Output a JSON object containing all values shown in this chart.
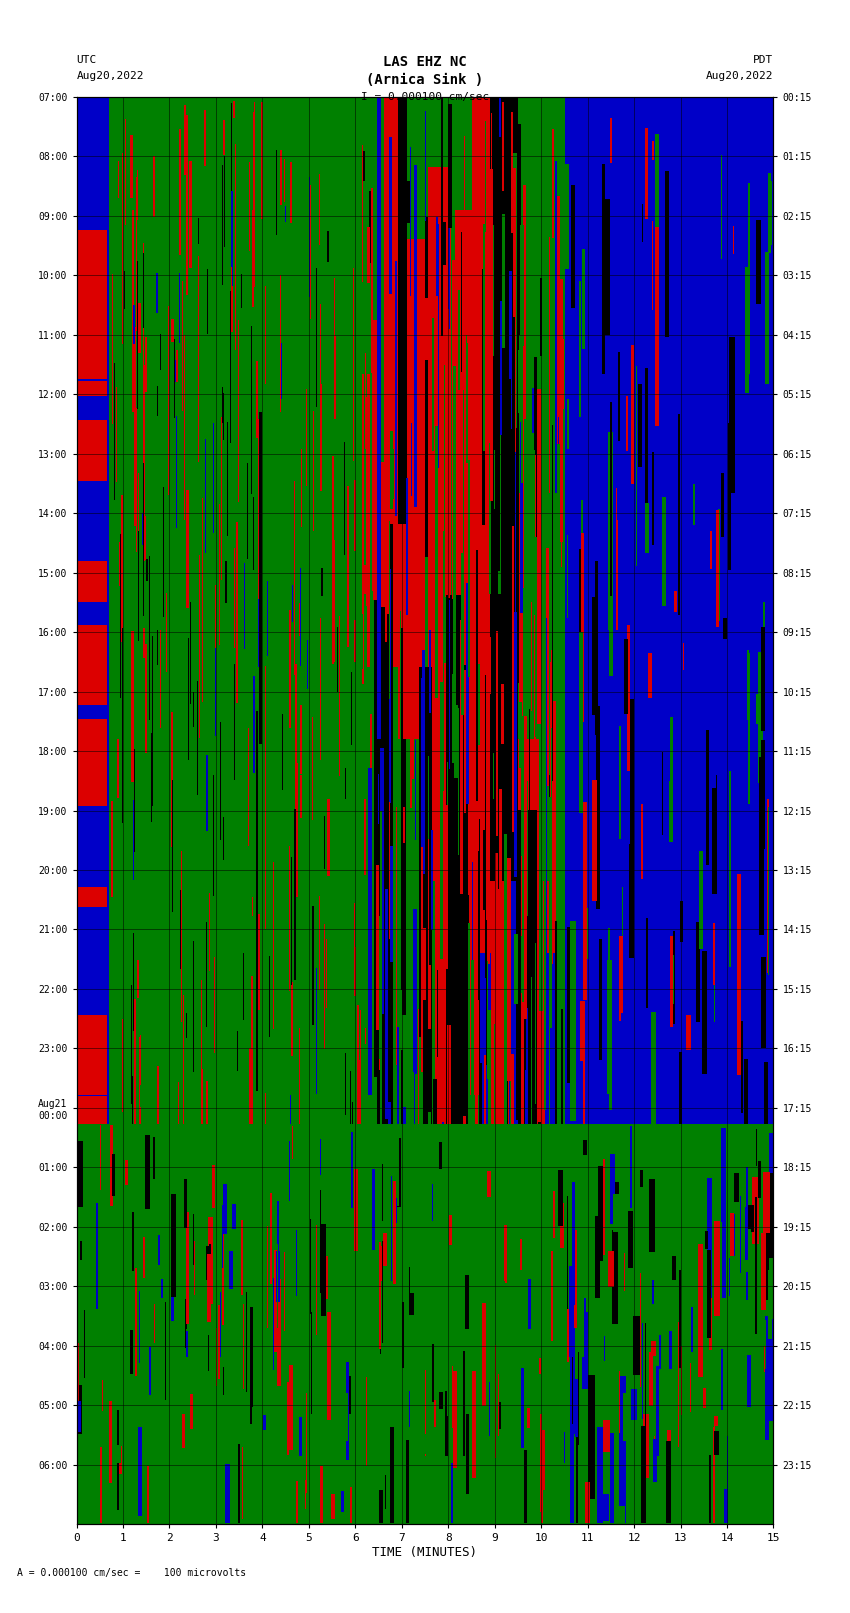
{
  "title_line1": "LAS EHZ NC",
  "title_line2": "(Arnica Sink )",
  "title_scale": "I = 0.000100 cm/sec",
  "left_label_line1": "UTC",
  "left_label_line2": "Aug20,2022",
  "right_label_line1": "PDT",
  "right_label_line2": "Aug20,2022",
  "xlabel": "TIME (MINUTES)",
  "bottom_note": "A = 0.000100 cm/sec =    100 microvolts",
  "ytick_labels_utc": [
    "07:00",
    "08:00",
    "09:00",
    "10:00",
    "11:00",
    "12:00",
    "13:00",
    "14:00",
    "15:00",
    "16:00",
    "17:00",
    "18:00",
    "19:00",
    "20:00",
    "21:00",
    "22:00",
    "23:00",
    "Aug21\n00:00",
    "01:00",
    "02:00",
    "03:00",
    "04:00",
    "05:00",
    "06:00"
  ],
  "ytick_labels_pdt": [
    "00:15",
    "01:15",
    "02:15",
    "03:15",
    "04:15",
    "05:15",
    "06:15",
    "07:15",
    "08:15",
    "09:15",
    "10:15",
    "11:15",
    "12:15",
    "13:15",
    "14:15",
    "15:15",
    "16:15",
    "17:15",
    "18:15",
    "19:15",
    "20:15",
    "21:15",
    "22:15",
    "23:15"
  ],
  "xtick_labels": [
    "0",
    "1",
    "2",
    "3",
    "4",
    "5",
    "6",
    "7",
    "8",
    "9",
    "10",
    "11",
    "12",
    "13",
    "14",
    "15"
  ],
  "xmin": 0,
  "xmax": 15,
  "ymin": 0,
  "ymax": 24,
  "fig_width": 8.5,
  "fig_height": 16.13,
  "dpi": 100
}
